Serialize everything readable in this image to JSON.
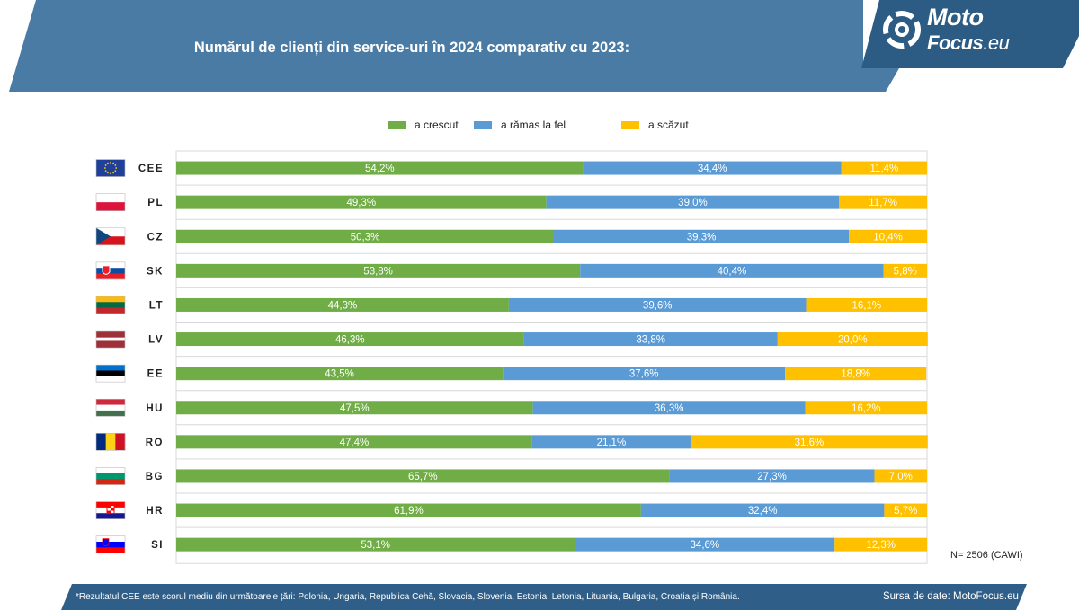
{
  "header": {
    "title": "Numărul de clienți din service-uri în 2024 comparativ cu 2023:"
  },
  "logo": {
    "line1": "Moto",
    "line2": "Focus",
    "suffix": ".eu"
  },
  "colors": {
    "header": "#4a7ba4",
    "logo_bg": "#2c5b84",
    "footer": "#2f5f89",
    "green": "#70ad47",
    "blue": "#5b9bd5",
    "yellow": "#ffc000",
    "grid": "#d9d9d9"
  },
  "chart_data": {
    "type": "bar",
    "orientation": "horizontal",
    "stacked": true,
    "categories": [
      "CEE",
      "PL",
      "CZ",
      "SK",
      "LT",
      "LV",
      "EE",
      "HU",
      "RO",
      "BG",
      "HR",
      "SI"
    ],
    "series": [
      {
        "name": "a crescut",
        "color": "#70ad47",
        "values": [
          54.2,
          49.3,
          50.3,
          53.8,
          44.3,
          46.3,
          43.5,
          47.5,
          47.4,
          65.7,
          61.9,
          53.1
        ],
        "labels": [
          "54,2%",
          "49,3%",
          "50,3%",
          "53,8%",
          "44,3%",
          "46,3%",
          "43,5%",
          "47,5%",
          "47,4%",
          "65,7%",
          "61,9%",
          "53,1%"
        ]
      },
      {
        "name": "a rămas la fel",
        "color": "#5b9bd5",
        "values": [
          34.4,
          39.0,
          39.3,
          40.4,
          39.6,
          33.8,
          37.6,
          36.3,
          21.1,
          27.3,
          32.4,
          34.6
        ],
        "labels": [
          "34,4%",
          "39,0%",
          "39,3%",
          "40,4%",
          "39,6%",
          "33,8%",
          "37,6%",
          "36,3%",
          "21,1%",
          "27,3%",
          "32,4%",
          "34,6%"
        ]
      },
      {
        "name": "a scăzut",
        "color": "#ffc000",
        "values": [
          11.4,
          11.7,
          10.4,
          5.8,
          16.1,
          20.0,
          18.8,
          16.2,
          31.6,
          7.0,
          5.7,
          12.3
        ],
        "labels": [
          "11,4%",
          "11,7%",
          "10,4%",
          "5,8%",
          "16,1%",
          "20,0%",
          "18,8%",
          "16,2%",
          "31,6%",
          "7,0%",
          "5,7%",
          "12,3%"
        ]
      }
    ],
    "flags": [
      "eu",
      "pl",
      "cz",
      "sk",
      "lt",
      "lv",
      "ee",
      "hu",
      "ro",
      "bg",
      "hr",
      "si"
    ],
    "xlim": [
      0,
      100
    ],
    "grid": true,
    "legend_position": "top"
  },
  "sample_note": "N= 2506 (CAWI)",
  "footer": {
    "note": "*Rezultatul CEE este scorul mediu din următoarele țări: Polonia, Ungaria, Republica Cehă, Slovacia, Slovenia, Estonia, Letonia, Lituania, Bulgaria, Croația și România.",
    "source": "Sursa de date: MotoFocus.eu"
  }
}
